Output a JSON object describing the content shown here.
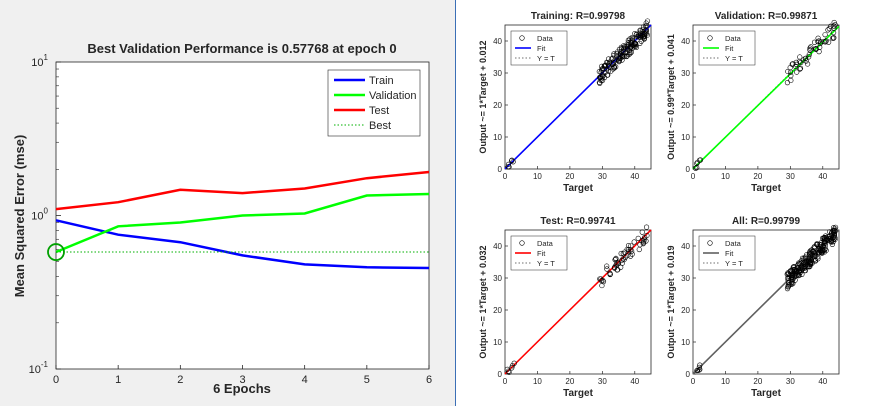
{
  "chart_data": [
    {
      "type": "line",
      "title": "Best Validation Performance is 0.57768 at epoch 0",
      "xlabel": "6 Epochs",
      "ylabel": "Mean Squared Error  (mse)",
      "xlim": [
        0,
        6
      ],
      "ylim": [
        0.1,
        10
      ],
      "yscale": "log",
      "x_ticks": [
        "0",
        "1",
        "2",
        "3",
        "4",
        "5",
        "6"
      ],
      "y_ticks": [
        {
          "base": "10",
          "exp": "-1",
          "value": 0.1
        },
        {
          "base": "10",
          "exp": "0",
          "value": 1
        },
        {
          "base": "10",
          "exp": "1",
          "value": 10
        }
      ],
      "x": [
        0,
        1,
        2,
        3,
        4,
        5,
        6
      ],
      "series": [
        {
          "name": "Train",
          "color": "#0000ff",
          "values": [
            0.93,
            0.75,
            0.67,
            0.55,
            0.48,
            0.46,
            0.455
          ]
        },
        {
          "name": "Validation",
          "color": "#00ff00",
          "values": [
            0.578,
            0.85,
            0.9,
            1.0,
            1.03,
            1.35,
            1.38
          ]
        },
        {
          "name": "Test",
          "color": "#ff0000",
          "values": [
            1.1,
            1.22,
            1.47,
            1.4,
            1.5,
            1.75,
            1.92
          ]
        },
        {
          "name": "Best",
          "color": "#00b000",
          "style": "dotted",
          "values": [
            0.578,
            0.578,
            0.578,
            0.578,
            0.578,
            0.578,
            0.578
          ]
        }
      ],
      "best_point": {
        "x": 0,
        "y": 0.578
      },
      "legend": "top-right",
      "grid": false
    },
    {
      "type": "scatter",
      "title": "Training: R=0.99798",
      "xlabel": "Target",
      "ylabel": "Output ~= 1*Target + 0.012",
      "xlim": [
        0,
        45
      ],
      "ylim": [
        0,
        45
      ],
      "ticks": [
        "0",
        "10",
        "20",
        "30",
        "40"
      ],
      "fit": {
        "slope": 1,
        "intercept": 0.012,
        "color": "#0000ff"
      },
      "legend": {
        "entries": [
          "Data",
          "Fit",
          "Y = T"
        ],
        "placement": "top-left"
      }
    },
    {
      "type": "scatter",
      "title": "Validation: R=0.99871",
      "xlabel": "Target",
      "ylabel": "Output ~= 0.99*Target + 0.041",
      "xlim": [
        0,
        45
      ],
      "ylim": [
        0,
        45
      ],
      "ticks": [
        "0",
        "10",
        "20",
        "30",
        "40"
      ],
      "fit": {
        "slope": 0.99,
        "intercept": 0.041,
        "color": "#00ff00"
      },
      "legend": {
        "entries": [
          "Data",
          "Fit",
          "Y = T"
        ],
        "placement": "top-left"
      }
    },
    {
      "type": "scatter",
      "title": "Test: R=0.99741",
      "xlabel": "Target",
      "ylabel": "Output ~= 1*Target + 0.032",
      "xlim": [
        0,
        45
      ],
      "ylim": [
        0,
        45
      ],
      "ticks": [
        "0",
        "10",
        "20",
        "30",
        "40"
      ],
      "fit": {
        "slope": 1,
        "intercept": 0.032,
        "color": "#ff0000"
      },
      "legend": {
        "entries": [
          "Data",
          "Fit",
          "Y = T"
        ],
        "placement": "top-left"
      }
    },
    {
      "type": "scatter",
      "title": "All: R=0.99799",
      "xlabel": "Target",
      "ylabel": "Output ~= 1*Target + 0.019",
      "xlim": [
        0,
        45
      ],
      "ylim": [
        0,
        45
      ],
      "ticks": [
        "0",
        "10",
        "20",
        "30",
        "40"
      ],
      "fit": {
        "slope": 1,
        "intercept": 0.019,
        "color": "#606060"
      },
      "legend": {
        "entries": [
          "Data",
          "Fit",
          "Y = T"
        ],
        "placement": "top-left"
      }
    }
  ]
}
